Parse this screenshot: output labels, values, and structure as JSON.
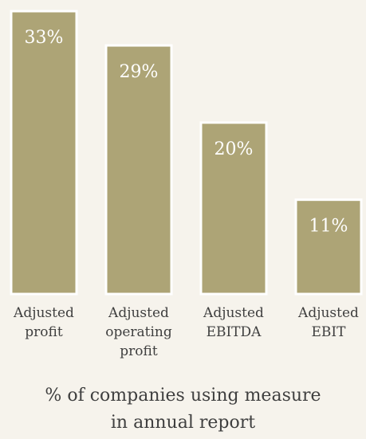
{
  "chart_data": {
    "type": "bar",
    "categories": [
      [
        "Adjusted",
        "profit"
      ],
      [
        "Adjusted",
        "operating",
        "profit"
      ],
      [
        "Adjusted",
        "EBITDA"
      ],
      [
        "Adjusted",
        "EBIT"
      ]
    ],
    "values": [
      33,
      29,
      20,
      11
    ],
    "value_labels": [
      "33%",
      "29%",
      "20%",
      "11%"
    ],
    "ylim": [
      0,
      33
    ],
    "bar_color": "#ada476",
    "caption": [
      "% of companies using measure",
      "in annual report"
    ]
  }
}
